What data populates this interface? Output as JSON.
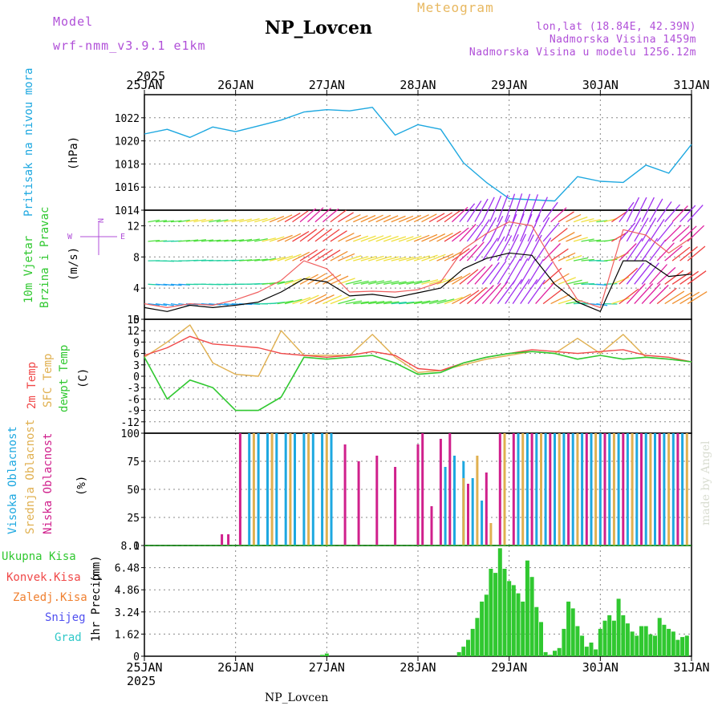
{
  "header": {
    "model_label": "Model",
    "model_value": "wrf-nmm_v3.9.1 e1km",
    "title": "NP_Lovcen",
    "meteogram_label": "Meteogram",
    "coords": "lon,lat (18.84E, 42.39N)",
    "altitude": "Nadmorska Visina 1459m",
    "model_altitude": "Nadmorska Visina u modelu 1256.12m",
    "year_top": "2025",
    "year_bottom": "2025",
    "footer_station": "NP_Lovcen",
    "credit": "made by Angel"
  },
  "colors": {
    "pressure": "#1ea8e0",
    "temp2m": "#f04848",
    "sfc_temp": "#e0b050",
    "dewpt": "#30c830",
    "precip": "#30c830",
    "purple_text": "#b04fd8",
    "high_cloud": "#1ea8e0",
    "mid_cloud": "#e0b050",
    "low_cloud": "#d0208c"
  },
  "chart_data": [
    {
      "type": "line",
      "panel": "pressure",
      "ylabel_main": "Pritisak na nivou mora",
      "ylabel_unit": "(hPa)",
      "ylim": [
        1014,
        1024
      ],
      "yticks": [
        "1014",
        "1016",
        "1018",
        "1020",
        "1022"
      ],
      "x_day_offsets": [
        0,
        0.25,
        0.5,
        0.75,
        1.0,
        1.25,
        1.5,
        1.75,
        2.0,
        2.25,
        2.5,
        2.75,
        3.0,
        3.25,
        3.5,
        3.75,
        4.0,
        4.25,
        4.5,
        4.75,
        5.0,
        5.25,
        5.5,
        5.75,
        6.0
      ],
      "series": [
        {
          "values": [
            1020.6,
            1021.0,
            1020.3,
            1021.2,
            1020.8,
            1021.3,
            1021.8,
            1022.5,
            1022.7,
            1022.6,
            1022.9,
            1020.5,
            1021.4,
            1021.0,
            1018.1,
            1016.4,
            1015.0,
            1014.9,
            1014.8,
            1016.9,
            1016.5,
            1016.4,
            1017.9,
            1017.2,
            1019.7
          ]
        }
      ]
    },
    {
      "type": "line",
      "panel": "wind",
      "ylabel_main": "10m Vjetar",
      "ylabel_sub": "Brzina i Pravac",
      "ylabel_unit": "(m/s)",
      "compass_label": "N",
      "compass_w": "W",
      "compass_e": "E",
      "ylim": [
        0,
        14
      ],
      "yticks": [
        "0",
        "4",
        "8",
        "12"
      ],
      "x_day_offsets": [
        0,
        0.25,
        0.5,
        0.75,
        1.0,
        1.25,
        1.5,
        1.75,
        2.0,
        2.25,
        2.5,
        2.75,
        3.0,
        3.25,
        3.5,
        3.75,
        4.0,
        4.25,
        4.5,
        4.75,
        5.0,
        5.25,
        5.5,
        5.75,
        6.0
      ],
      "series": [
        {
          "name": "speed",
          "values": [
            1.5,
            1.0,
            1.8,
            1.5,
            1.8,
            2.2,
            3.5,
            5.2,
            4.8,
            3.0,
            3.2,
            2.8,
            3.4,
            4.0,
            6.5,
            7.8,
            8.5,
            8.2,
            4.5,
            2.2,
            1.0,
            7.5,
            7.5,
            5.5,
            5.8
          ]
        },
        {
          "name": "gust",
          "values": [
            2.0,
            1.5,
            2.0,
            1.8,
            2.5,
            3.5,
            5.0,
            7.5,
            6.5,
            3.5,
            3.6,
            3.5,
            3.8,
            4.8,
            9.0,
            11.0,
            12.5,
            12.0,
            7.0,
            2.5,
            1.5,
            11.5,
            10.8,
            8.5,
            10.5
          ]
        }
      ]
    },
    {
      "type": "line",
      "panel": "temperature",
      "ylabel_main": "2m Temp",
      "ylabel_sub": "SFC Temp",
      "ylabel_sub2": "dewpt Temp",
      "ylabel_unit": "(C)",
      "ylim": [
        -15,
        15
      ],
      "yticks": [
        "-12",
        "-9",
        "-6",
        "-3",
        "0",
        "3",
        "6",
        "9",
        "12",
        "15"
      ],
      "x_day_offsets": [
        0,
        0.25,
        0.5,
        0.75,
        1.0,
        1.25,
        1.5,
        1.75,
        2.0,
        2.25,
        2.5,
        2.75,
        3.0,
        3.25,
        3.5,
        3.75,
        4.0,
        4.25,
        4.5,
        4.75,
        5.0,
        5.25,
        5.5,
        5.75,
        6.0
      ],
      "series": [
        {
          "name": "2m Temp",
          "values": [
            5.5,
            7.5,
            10.5,
            8.5,
            8.0,
            7.5,
            6.0,
            5.5,
            5.0,
            5.5,
            6.5,
            5.5,
            2.0,
            1.5,
            3.5,
            5.0,
            6.0,
            7.0,
            6.5,
            6.0,
            6.5,
            7.0,
            5.5,
            5.0,
            3.8
          ]
        },
        {
          "name": "SFC Temp",
          "values": [
            5.0,
            9.0,
            13.5,
            3.5,
            0.5,
            0.0,
            12.0,
            5.5,
            5.5,
            5.5,
            11.0,
            5.0,
            1.0,
            1.5,
            3.0,
            4.5,
            5.5,
            6.5,
            6.0,
            10.0,
            6.0,
            11.0,
            5.0,
            4.5,
            3.8
          ]
        },
        {
          "name": "dewpt Temp",
          "values": [
            5.0,
            -6.0,
            -1.0,
            -3.0,
            -9.0,
            -9.0,
            -5.5,
            5.0,
            4.5,
            5.0,
            5.5,
            3.5,
            0.5,
            1.0,
            3.5,
            5.0,
            6.0,
            6.5,
            6.0,
            4.5,
            5.5,
            4.5,
            5.0,
            4.5,
            3.8
          ]
        }
      ]
    },
    {
      "type": "bar",
      "panel": "clouds",
      "ylabel_main": "Visoka Oblacnost",
      "ylabel_sub": "Srednja Oblacnost",
      "ylabel_sub2": "Niska Oblacnost",
      "ylabel_unit": "(%)",
      "ylim": [
        0,
        100
      ],
      "yticks": [
        "0",
        "25",
        "50",
        "75",
        "100"
      ],
      "series": [
        {
          "name": "Visoka Oblacnost",
          "x_day_offsets": [
            1.15,
            1.25,
            1.35,
            1.45,
            1.55,
            1.65,
            1.75,
            1.85,
            1.95,
            2.05,
            3.3,
            3.4,
            3.5,
            3.6,
            3.7,
            4.1,
            4.2,
            4.3,
            4.4,
            4.5,
            4.6,
            4.7,
            4.8,
            4.9,
            5.0,
            5.1,
            5.2,
            5.3,
            5.4,
            5.5,
            5.6,
            5.7,
            5.8,
            5.9
          ],
          "values": [
            100,
            100,
            100,
            100,
            100,
            100,
            100,
            100,
            100,
            100,
            70,
            80,
            75,
            60,
            40,
            100,
            100,
            100,
            100,
            100,
            100,
            100,
            100,
            100,
            100,
            100,
            100,
            100,
            100,
            100,
            100,
            100,
            100,
            100
          ]
        },
        {
          "name": "Srednja Oblacnost",
          "x_day_offsets": [
            1.2,
            1.4,
            1.6,
            1.8,
            2.0,
            3.5,
            3.65,
            3.8,
            3.95,
            4.15,
            4.35,
            4.55,
            4.75,
            4.95,
            5.15,
            5.35,
            5.55,
            5.75,
            5.95
          ],
          "values": [
            100,
            100,
            100,
            100,
            100,
            60,
            80,
            20,
            100,
            100,
            100,
            100,
            100,
            100,
            100,
            100,
            100,
            100,
            100
          ]
        },
        {
          "name": "Niska Oblacnost",
          "x_day_offsets": [
            0.85,
            0.92,
            1.05,
            2.2,
            2.35,
            2.55,
            2.75,
            3.0,
            3.05,
            3.15,
            3.25,
            3.35,
            3.55,
            3.75,
            3.9,
            4.05,
            4.25,
            4.45,
            4.65,
            4.85,
            5.05,
            5.25,
            5.45,
            5.65,
            5.85
          ],
          "values": [
            10,
            10,
            100,
            90,
            75,
            80,
            70,
            90,
            100,
            35,
            95,
            100,
            55,
            65,
            100,
            100,
            100,
            100,
            100,
            100,
            100,
            100,
            100,
            100,
            100
          ]
        }
      ]
    },
    {
      "type": "bar",
      "panel": "precip",
      "ylabel_main": "1hr Precip",
      "ylabel_unit": "(mm)",
      "ylim": [
        0,
        8.1
      ],
      "yticks": [
        "0",
        "1.62",
        "3.24",
        "4.86",
        "6.48",
        "8.1"
      ],
      "legend": [
        "Ukupna Kisa",
        "Konvek.Kisa",
        "Zaledj.Kisa",
        "Snijeg",
        "Grad"
      ],
      "legend_colors": [
        "#30c830",
        "#f04848",
        "#f08030",
        "#5050f0",
        "#30c8c8"
      ],
      "x_day_offsets": [
        1.95,
        2.0,
        3.45,
        3.5,
        3.55,
        3.6,
        3.65,
        3.7,
        3.75,
        3.8,
        3.85,
        3.9,
        3.95,
        4.0,
        4.05,
        4.1,
        4.15,
        4.2,
        4.25,
        4.3,
        4.35,
        4.4,
        4.45,
        4.5,
        4.55,
        4.6,
        4.65,
        4.7,
        4.75,
        4.8,
        4.85,
        4.9,
        4.95,
        5.0,
        5.05,
        5.1,
        5.15,
        5.2,
        5.25,
        5.3,
        5.35,
        5.4,
        5.45,
        5.5,
        5.55,
        5.6,
        5.65,
        5.7,
        5.75,
        5.8,
        5.85,
        5.9,
        5.95
      ],
      "values": [
        0.1,
        0.2,
        0.3,
        0.7,
        1.2,
        2.0,
        2.8,
        4.0,
        4.5,
        6.4,
        6.1,
        7.9,
        6.4,
        5.5,
        5.2,
        4.6,
        4.0,
        7.0,
        5.8,
        3.6,
        2.5,
        0.3,
        0.1,
        0.4,
        0.6,
        2.0,
        4.0,
        3.5,
        2.2,
        1.5,
        0.7,
        1.0,
        0.5,
        2.0,
        2.6,
        3.0,
        2.6,
        4.2,
        3.0,
        2.4,
        1.8,
        1.5,
        2.2,
        2.2,
        1.6,
        1.5,
        2.8,
        2.3,
        2.0,
        1.8,
        1.2,
        1.4,
        1.5
      ]
    }
  ],
  "x_axis": {
    "day_labels": [
      "25JAN",
      "26JAN",
      "27JAN",
      "28JAN",
      "29JAN",
      "30JAN",
      "31JAN"
    ]
  }
}
